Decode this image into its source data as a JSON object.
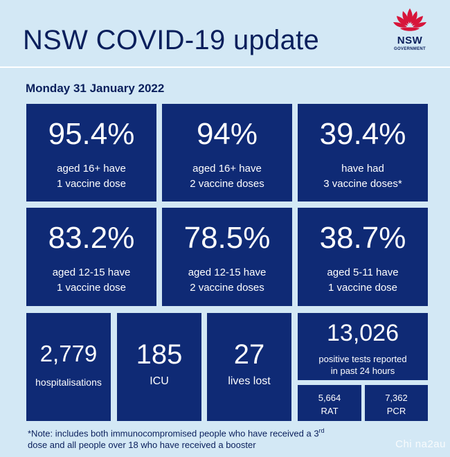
{
  "header": {
    "title": "NSW COVID-19 update",
    "logo_text": "NSW",
    "logo_subtext": "GOVERNMENT",
    "logo_icon": "waratah-flower-icon",
    "logo_color": "#d7153a"
  },
  "date": "Monday 31 January 2022",
  "row1": [
    {
      "value": "95.4%",
      "line1": "aged 16+ have",
      "line2": "1 vaccine dose"
    },
    {
      "value": "94%",
      "line1": "aged 16+ have",
      "line2": "2 vaccine doses"
    },
    {
      "value": "39.4%",
      "line1": "have had",
      "line2": "3 vaccine doses*"
    }
  ],
  "row2": [
    {
      "value": "83.2%",
      "line1": "aged 12-15 have",
      "line2": "1 vaccine dose"
    },
    {
      "value": "78.5%",
      "line1": "aged 12-15 have",
      "line2": "2 vaccine doses"
    },
    {
      "value": "38.7%",
      "line1": "aged 5-11 have",
      "line2": "1 vaccine dose"
    }
  ],
  "row3": {
    "hospitalisations": {
      "value": "2,779",
      "label": "hospitalisations"
    },
    "icu": {
      "value": "185",
      "label": "ICU"
    },
    "deaths": {
      "value": "27",
      "label": "lives lost"
    },
    "tests": {
      "value": "13,026",
      "line1": "positive tests reported",
      "line2": "in past 24 hours"
    },
    "rat": {
      "value": "5,664",
      "label": "RAT"
    },
    "pcr": {
      "value": "7,362",
      "label": "PCR"
    }
  },
  "note": {
    "line1_a": "*Note: includes both immunocompromised  people who have received a 3",
    "line1_sup": "rd",
    "line2": "dose and all people over 18 who have received a booster"
  },
  "watermark": "Chi na2au",
  "colors": {
    "background": "#d3e8f5",
    "tile": "#0f2a75",
    "text_dark": "#0a1f5c"
  }
}
